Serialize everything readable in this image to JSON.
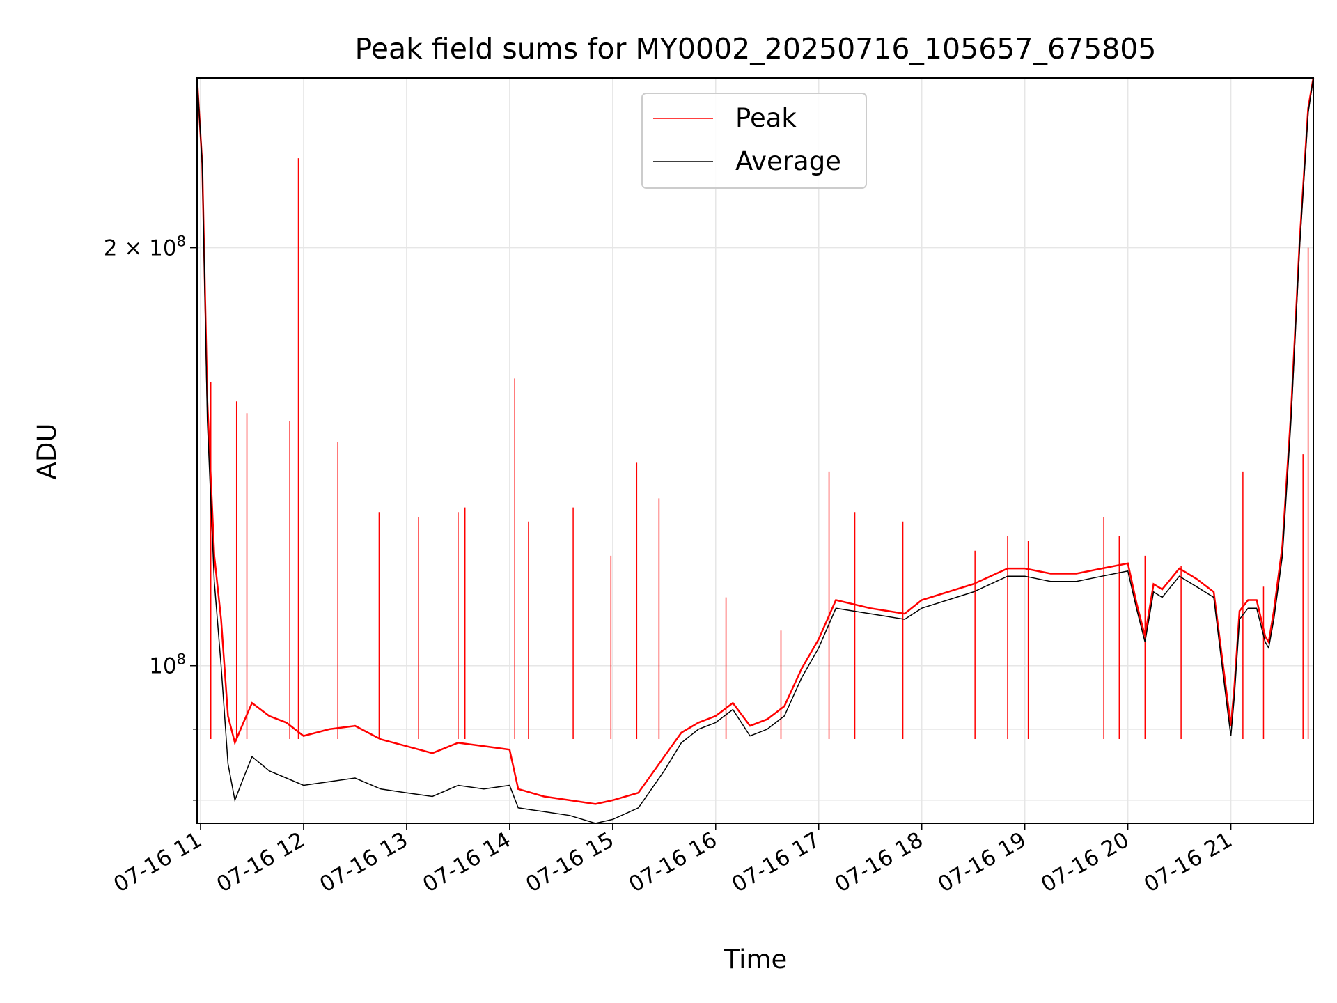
{
  "chart_data": {
    "type": "line",
    "title": "Peak field sums for MY0002_20250716_105657_675805",
    "xlabel": "Time",
    "ylabel": "ADU",
    "x_range": [
      "07-16 10:58",
      "07-16 21:48"
    ],
    "y_scale": "log",
    "ylim": [
      77000000,
      265000000
    ],
    "grid": true,
    "legend_position": "top-center",
    "x_ticks": [
      "07-16 11",
      "07-16 12",
      "07-16 13",
      "07-16 14",
      "07-16 15",
      "07-16 16",
      "07-16 17",
      "07-16 18",
      "07-16 19",
      "07-16 20",
      "07-16 21"
    ],
    "y_ticks": [
      {
        "value": 100000000,
        "base": "10",
        "exp": "8",
        "coef": ""
      },
      {
        "value": 200000000,
        "base": "10",
        "exp": "8",
        "coef": "2 × "
      }
    ],
    "y_minor_ticks": [
      80000000,
      90000000
    ],
    "colors": {
      "Peak": "#ff0000",
      "Average": "#000000"
    },
    "series": [
      {
        "name": "Average",
        "x": [
          "07-16 10:58",
          "07-16 11:01",
          "07-16 11:04",
          "07-16 11:08",
          "07-16 11:12",
          "07-16 11:16",
          "07-16 11:20",
          "07-16 11:25",
          "07-16 11:30",
          "07-16 11:40",
          "07-16 11:50",
          "07-16 12:00",
          "07-16 12:15",
          "07-16 12:30",
          "07-16 12:45",
          "07-16 13:00",
          "07-16 13:15",
          "07-16 13:30",
          "07-16 13:45",
          "07-16 14:00",
          "07-16 14:05",
          "07-16 14:20",
          "07-16 14:35",
          "07-16 14:50",
          "07-16 15:00",
          "07-16 15:15",
          "07-16 15:30",
          "07-16 15:40",
          "07-16 15:50",
          "07-16 16:00",
          "07-16 16:10",
          "07-16 16:20",
          "07-16 16:30",
          "07-16 16:40",
          "07-16 16:50",
          "07-16 17:00",
          "07-16 17:10",
          "07-16 17:30",
          "07-16 17:50",
          "07-16 18:00",
          "07-16 18:30",
          "07-16 18:50",
          "07-16 19:00",
          "07-16 19:15",
          "07-16 19:30",
          "07-16 19:45",
          "07-16 20:00",
          "07-16 20:05",
          "07-16 20:10",
          "07-16 20:15",
          "07-16 20:20",
          "07-16 20:30",
          "07-16 20:40",
          "07-16 20:50",
          "07-16 20:58",
          "07-16 21:00",
          "07-16 21:02",
          "07-16 21:05",
          "07-16 21:10",
          "07-16 21:15",
          "07-16 21:20",
          "07-16 21:22",
          "07-16 21:25",
          "07-16 21:30",
          "07-16 21:35",
          "07-16 21:40",
          "07-16 21:45",
          "07-16 21:48"
        ],
        "y": [
          265000000,
          230000000,
          150000000,
          115000000,
          100000000,
          85000000,
          80000000,
          83000000,
          86000000,
          84000000,
          83000000,
          82000000,
          82500000,
          83000000,
          81500000,
          81000000,
          80500000,
          82000000,
          81500000,
          82000000,
          79000000,
          78500000,
          78000000,
          77000000,
          77500000,
          79000000,
          84000000,
          88000000,
          90000000,
          91000000,
          93000000,
          89000000,
          90000000,
          92000000,
          98000000,
          103000000,
          110000000,
          109000000,
          108000000,
          110000000,
          113000000,
          116000000,
          116000000,
          115000000,
          115000000,
          116000000,
          117000000,
          110000000,
          104000000,
          113000000,
          112000000,
          116000000,
          114000000,
          112000000,
          93000000,
          89000000,
          95000000,
          108000000,
          110000000,
          110000000,
          104000000,
          103000000,
          108000000,
          120000000,
          150000000,
          200000000,
          250000000,
          265000000
        ]
      },
      {
        "name": "Peak",
        "x": [
          "07-16 10:58",
          "07-16 11:01",
          "07-16 11:04",
          "07-16 11:08",
          "07-16 11:12",
          "07-16 11:16",
          "07-16 11:20",
          "07-16 11:25",
          "07-16 11:30",
          "07-16 11:40",
          "07-16 11:50",
          "07-16 12:00",
          "07-16 12:15",
          "07-16 12:30",
          "07-16 12:45",
          "07-16 13:00",
          "07-16 13:15",
          "07-16 13:30",
          "07-16 13:45",
          "07-16 14:00",
          "07-16 14:05",
          "07-16 14:20",
          "07-16 14:35",
          "07-16 14:50",
          "07-16 15:00",
          "07-16 15:15",
          "07-16 15:30",
          "07-16 15:40",
          "07-16 15:50",
          "07-16 16:00",
          "07-16 16:10",
          "07-16 16:20",
          "07-16 16:30",
          "07-16 16:40",
          "07-16 16:50",
          "07-16 17:00",
          "07-16 17:10",
          "07-16 17:30",
          "07-16 17:50",
          "07-16 18:00",
          "07-16 18:30",
          "07-16 18:50",
          "07-16 19:00",
          "07-16 19:15",
          "07-16 19:30",
          "07-16 19:45",
          "07-16 20:00",
          "07-16 20:05",
          "07-16 20:10",
          "07-16 20:15",
          "07-16 20:20",
          "07-16 20:30",
          "07-16 20:40",
          "07-16 20:50",
          "07-16 20:58",
          "07-16 21:00",
          "07-16 21:02",
          "07-16 21:05",
          "07-16 21:10",
          "07-16 21:15",
          "07-16 21:20",
          "07-16 21:22",
          "07-16 21:25",
          "07-16 21:30",
          "07-16 21:35",
          "07-16 21:40",
          "07-16 21:45",
          "07-16 21:48"
        ],
        "y": [
          265000000,
          230000000,
          155000000,
          120000000,
          108000000,
          92000000,
          88000000,
          91000000,
          94000000,
          92000000,
          91000000,
          89000000,
          90000000,
          90500000,
          88500000,
          87500000,
          86500000,
          88000000,
          87500000,
          87000000,
          81500000,
          80500000,
          80000000,
          79500000,
          80000000,
          81000000,
          86000000,
          89500000,
          91000000,
          92000000,
          94000000,
          90500000,
          91500000,
          93500000,
          99500000,
          104500000,
          111500000,
          110000000,
          109000000,
          111500000,
          114500000,
          117500000,
          117500000,
          116500000,
          116500000,
          117500000,
          118500000,
          111000000,
          105000000,
          114500000,
          113500000,
          117500000,
          115500000,
          113000000,
          94500000,
          90500000,
          96500000,
          109500000,
          111500000,
          111500000,
          105000000,
          104000000,
          109500000,
          122000000,
          152000000,
          202000000,
          252000000,
          265000000
        ],
        "spikes": [
          {
            "x": "07-16 11:06",
            "y": 160000000
          },
          {
            "x": "07-16 11:21",
            "y": 155000000
          },
          {
            "x": "07-16 11:27",
            "y": 152000000
          },
          {
            "x": "07-16 11:52",
            "y": 150000000
          },
          {
            "x": "07-16 11:57",
            "y": 232000000
          },
          {
            "x": "07-16 12:20",
            "y": 145000000
          },
          {
            "x": "07-16 12:44",
            "y": 129000000
          },
          {
            "x": "07-16 13:07",
            "y": 128000000
          },
          {
            "x": "07-16 13:30",
            "y": 129000000
          },
          {
            "x": "07-16 13:34",
            "y": 130000000
          },
          {
            "x": "07-16 14:03",
            "y": 161000000
          },
          {
            "x": "07-16 14:11",
            "y": 127000000
          },
          {
            "x": "07-16 14:37",
            "y": 130000000
          },
          {
            "x": "07-16 14:59",
            "y": 120000000
          },
          {
            "x": "07-16 15:14",
            "y": 140000000
          },
          {
            "x": "07-16 15:27",
            "y": 132000000
          },
          {
            "x": "07-16 16:06",
            "y": 112000000
          },
          {
            "x": "07-16 16:38",
            "y": 106000000
          },
          {
            "x": "07-16 17:06",
            "y": 138000000
          },
          {
            "x": "07-16 17:21",
            "y": 129000000
          },
          {
            "x": "07-16 17:49",
            "y": 127000000
          },
          {
            "x": "07-16 18:31",
            "y": 121000000
          },
          {
            "x": "07-16 18:50",
            "y": 124000000
          },
          {
            "x": "07-16 19:02",
            "y": 123000000
          },
          {
            "x": "07-16 19:46",
            "y": 128000000
          },
          {
            "x": "07-16 19:55",
            "y": 124000000
          },
          {
            "x": "07-16 20:10",
            "y": 120000000
          },
          {
            "x": "07-16 20:31",
            "y": 118000000
          },
          {
            "x": "07-16 21:07",
            "y": 138000000
          },
          {
            "x": "07-16 21:19",
            "y": 114000000
          },
          {
            "x": "07-16 21:42",
            "y": 142000000
          },
          {
            "x": "07-16 21:45",
            "y": 200000000
          }
        ]
      }
    ]
  }
}
